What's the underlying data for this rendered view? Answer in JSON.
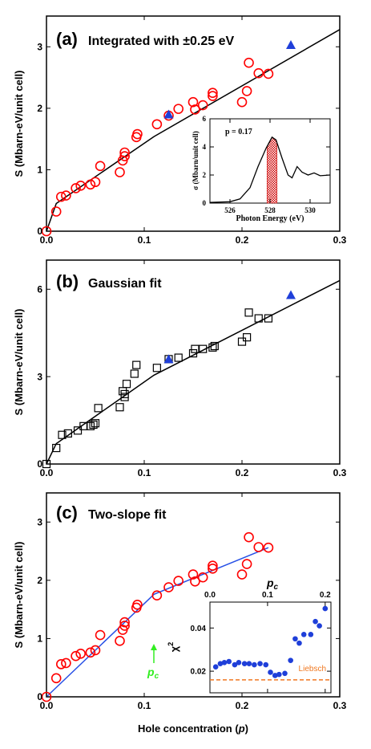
{
  "colors": {
    "red_circle": "#ff0000",
    "blue_marker": "#1f3fd9",
    "fit_line_ab": "#000000",
    "fit_line_c": "#2750e6",
    "pc_arrow": "#33ee22",
    "chi2_points": "#1f3fd9",
    "liebsch_line": "#f07820",
    "hatch_fill": "#cc0000"
  },
  "chart_data": [
    {
      "panel": "a",
      "type": "scatter",
      "title": "(a) Integrated with ±0.25 eV",
      "label": "(a)",
      "subtitle": "Integrated with ±0.25 eV",
      "ylabel": "S (Mbarn-eV/unit cell)",
      "xlabel": "",
      "xlim": [
        0,
        0.3
      ],
      "ylim": [
        0,
        3.5
      ],
      "x_ticks": [
        "0.0",
        "0.1",
        "0.2",
        "0.3"
      ],
      "y_ticks": [
        "0",
        "1",
        "2",
        "3"
      ],
      "series": [
        {
          "marker": "open-circle",
          "points": [
            [
              0.0,
              0.0
            ],
            [
              0.01,
              0.32
            ],
            [
              0.015,
              0.56
            ],
            [
              0.02,
              0.58
            ],
            [
              0.03,
              0.7
            ],
            [
              0.035,
              0.74
            ],
            [
              0.045,
              0.76
            ],
            [
              0.05,
              0.8
            ],
            [
              0.055,
              1.06
            ],
            [
              0.075,
              0.96
            ],
            [
              0.078,
              1.15
            ],
            [
              0.08,
              1.28
            ],
            [
              0.08,
              1.22
            ],
            [
              0.092,
              1.53
            ],
            [
              0.093,
              1.58
            ],
            [
              0.113,
              1.74
            ],
            [
              0.125,
              1.88
            ],
            [
              0.135,
              1.99
            ],
            [
              0.15,
              2.1
            ],
            [
              0.152,
              1.98
            ],
            [
              0.16,
              2.05
            ],
            [
              0.17,
              2.2
            ],
            [
              0.17,
              2.25
            ],
            [
              0.2,
              2.1
            ],
            [
              0.205,
              2.28
            ],
            [
              0.207,
              2.74
            ],
            [
              0.217,
              2.57
            ],
            [
              0.227,
              2.56
            ]
          ]
        },
        {
          "marker": "filled-triangle",
          "points": [
            [
              0.125,
              1.9
            ],
            [
              0.25,
              3.03
            ]
          ]
        },
        {
          "marker": "line",
          "points": [
            [
              0.0,
              0.0
            ],
            [
              0.01,
              0.45
            ],
            [
              0.11,
              1.54
            ],
            [
              0.3,
              3.28
            ]
          ]
        }
      ],
      "inset": {
        "type": "line",
        "annotation": "p = 0.17",
        "ylabel": "σ (Mbarn/unit cell)",
        "xlabel": "Photon Energy (eV)",
        "xlim": [
          525,
          531
        ],
        "ylim": [
          0,
          6
        ],
        "x_ticks": [
          "526",
          "528",
          "530"
        ],
        "y_ticks": [
          "0",
          "2",
          "4",
          "6"
        ],
        "points": [
          [
            525,
            0.05
          ],
          [
            526,
            0.1
          ],
          [
            526.5,
            0.3
          ],
          [
            527,
            1.1
          ],
          [
            527.4,
            2.6
          ],
          [
            527.8,
            3.9
          ],
          [
            528.1,
            4.7
          ],
          [
            528.3,
            4.5
          ],
          [
            528.6,
            3.2
          ],
          [
            528.9,
            2.0
          ],
          [
            529.1,
            1.8
          ],
          [
            529.35,
            2.6
          ],
          [
            529.6,
            2.2
          ],
          [
            529.9,
            2.0
          ],
          [
            530.2,
            2.15
          ],
          [
            530.5,
            1.95
          ],
          [
            531,
            2.0
          ]
        ],
        "shaded_range": [
          527.85,
          528.35
        ]
      }
    },
    {
      "panel": "b",
      "type": "scatter",
      "title": "(b) Gaussian fit",
      "label": "(b)",
      "subtitle": "Gaussian fit",
      "ylabel": "S (Mbarn-eV/unit cell)",
      "xlabel": "",
      "xlim": [
        0,
        0.3
      ],
      "ylim": [
        0,
        7
      ],
      "x_ticks": [
        "0.0",
        "0.1",
        "0.2",
        "0.3"
      ],
      "y_ticks": [
        "0",
        "3",
        "6"
      ],
      "series": [
        {
          "marker": "open-square",
          "points": [
            [
              0.0,
              0.0
            ],
            [
              0.01,
              0.55
            ],
            [
              0.016,
              1.0
            ],
            [
              0.022,
              1.05
            ],
            [
              0.032,
              1.15
            ],
            [
              0.038,
              1.3
            ],
            [
              0.045,
              1.3
            ],
            [
              0.048,
              1.35
            ],
            [
              0.05,
              1.4
            ],
            [
              0.053,
              1.92
            ],
            [
              0.075,
              1.95
            ],
            [
              0.078,
              2.5
            ],
            [
              0.08,
              2.3
            ],
            [
              0.08,
              2.4
            ],
            [
              0.082,
              2.75
            ],
            [
              0.09,
              3.1
            ],
            [
              0.092,
              3.4
            ],
            [
              0.113,
              3.3
            ],
            [
              0.125,
              3.6
            ],
            [
              0.135,
              3.65
            ],
            [
              0.15,
              3.8
            ],
            [
              0.152,
              3.95
            ],
            [
              0.16,
              3.95
            ],
            [
              0.17,
              4.0
            ],
            [
              0.172,
              4.05
            ],
            [
              0.2,
              4.2
            ],
            [
              0.205,
              4.35
            ],
            [
              0.207,
              5.2
            ],
            [
              0.217,
              5.0
            ],
            [
              0.227,
              5.0
            ]
          ]
        },
        {
          "marker": "filled-triangle",
          "points": [
            [
              0.125,
              3.6
            ],
            [
              0.25,
              5.8
            ]
          ]
        },
        {
          "marker": "line",
          "points": [
            [
              0.0,
              0.0
            ],
            [
              0.01,
              0.7
            ],
            [
              0.11,
              3.05
            ],
            [
              0.3,
              6.3
            ]
          ]
        }
      ]
    },
    {
      "panel": "c",
      "type": "scatter",
      "title": "(c) Two-slope fit",
      "label": "(c)",
      "subtitle": "Two-slope fit",
      "ylabel": "S (Mbarn-eV/unit cell)",
      "xlabel": "Hole concentration (p)",
      "xlim": [
        0,
        0.3
      ],
      "ylim": [
        0,
        3.5
      ],
      "x_ticks": [
        "0.0",
        "0.1",
        "0.2",
        "0.3"
      ],
      "y_ticks": [
        "0",
        "1",
        "2",
        "3"
      ],
      "pc_label": "p_c",
      "pc_value": 0.11,
      "series": [
        {
          "marker": "open-circle",
          "points": [
            [
              0.0,
              0.0
            ],
            [
              0.01,
              0.32
            ],
            [
              0.015,
              0.56
            ],
            [
              0.02,
              0.58
            ],
            [
              0.03,
              0.7
            ],
            [
              0.035,
              0.74
            ],
            [
              0.045,
              0.76
            ],
            [
              0.05,
              0.8
            ],
            [
              0.055,
              1.06
            ],
            [
              0.075,
              0.96
            ],
            [
              0.078,
              1.15
            ],
            [
              0.08,
              1.28
            ],
            [
              0.08,
              1.22
            ],
            [
              0.092,
              1.53
            ],
            [
              0.093,
              1.58
            ],
            [
              0.113,
              1.74
            ],
            [
              0.125,
              1.88
            ],
            [
              0.135,
              1.99
            ],
            [
              0.15,
              2.1
            ],
            [
              0.152,
              1.98
            ],
            [
              0.16,
              2.05
            ],
            [
              0.17,
              2.2
            ],
            [
              0.17,
              2.25
            ],
            [
              0.2,
              2.1
            ],
            [
              0.205,
              2.28
            ],
            [
              0.207,
              2.74
            ],
            [
              0.217,
              2.57
            ],
            [
              0.227,
              2.56
            ]
          ]
        },
        {
          "marker": "line",
          "points": [
            [
              0.0,
              0.0
            ],
            [
              0.11,
              1.76
            ],
            [
              0.227,
              2.56
            ]
          ]
        }
      ],
      "inset": {
        "type": "scatter",
        "xlabel": "p_c",
        "ylabel": "χ²",
        "xlim": [
          0,
          0.21
        ],
        "ylim": [
          0.01,
          0.052
        ],
        "x_ticks": [
          "0.0",
          "0.1",
          "0.2"
        ],
        "y_ticks": [
          "0.02",
          "0.04"
        ],
        "reference_label": "Liebsch",
        "reference_value": 0.016,
        "points": [
          [
            0.01,
            0.022
          ],
          [
            0.018,
            0.0235
          ],
          [
            0.025,
            0.024
          ],
          [
            0.033,
            0.0245
          ],
          [
            0.043,
            0.023
          ],
          [
            0.05,
            0.024
          ],
          [
            0.06,
            0.0235
          ],
          [
            0.068,
            0.0235
          ],
          [
            0.077,
            0.023
          ],
          [
            0.087,
            0.0235
          ],
          [
            0.097,
            0.023
          ],
          [
            0.105,
            0.0195
          ],
          [
            0.113,
            0.018
          ],
          [
            0.12,
            0.0185
          ],
          [
            0.13,
            0.019
          ],
          [
            0.14,
            0.025
          ],
          [
            0.148,
            0.035
          ],
          [
            0.155,
            0.033
          ],
          [
            0.163,
            0.037
          ],
          [
            0.175,
            0.037
          ],
          [
            0.183,
            0.043
          ],
          [
            0.19,
            0.041
          ],
          [
            0.2,
            0.049
          ]
        ]
      }
    }
  ]
}
